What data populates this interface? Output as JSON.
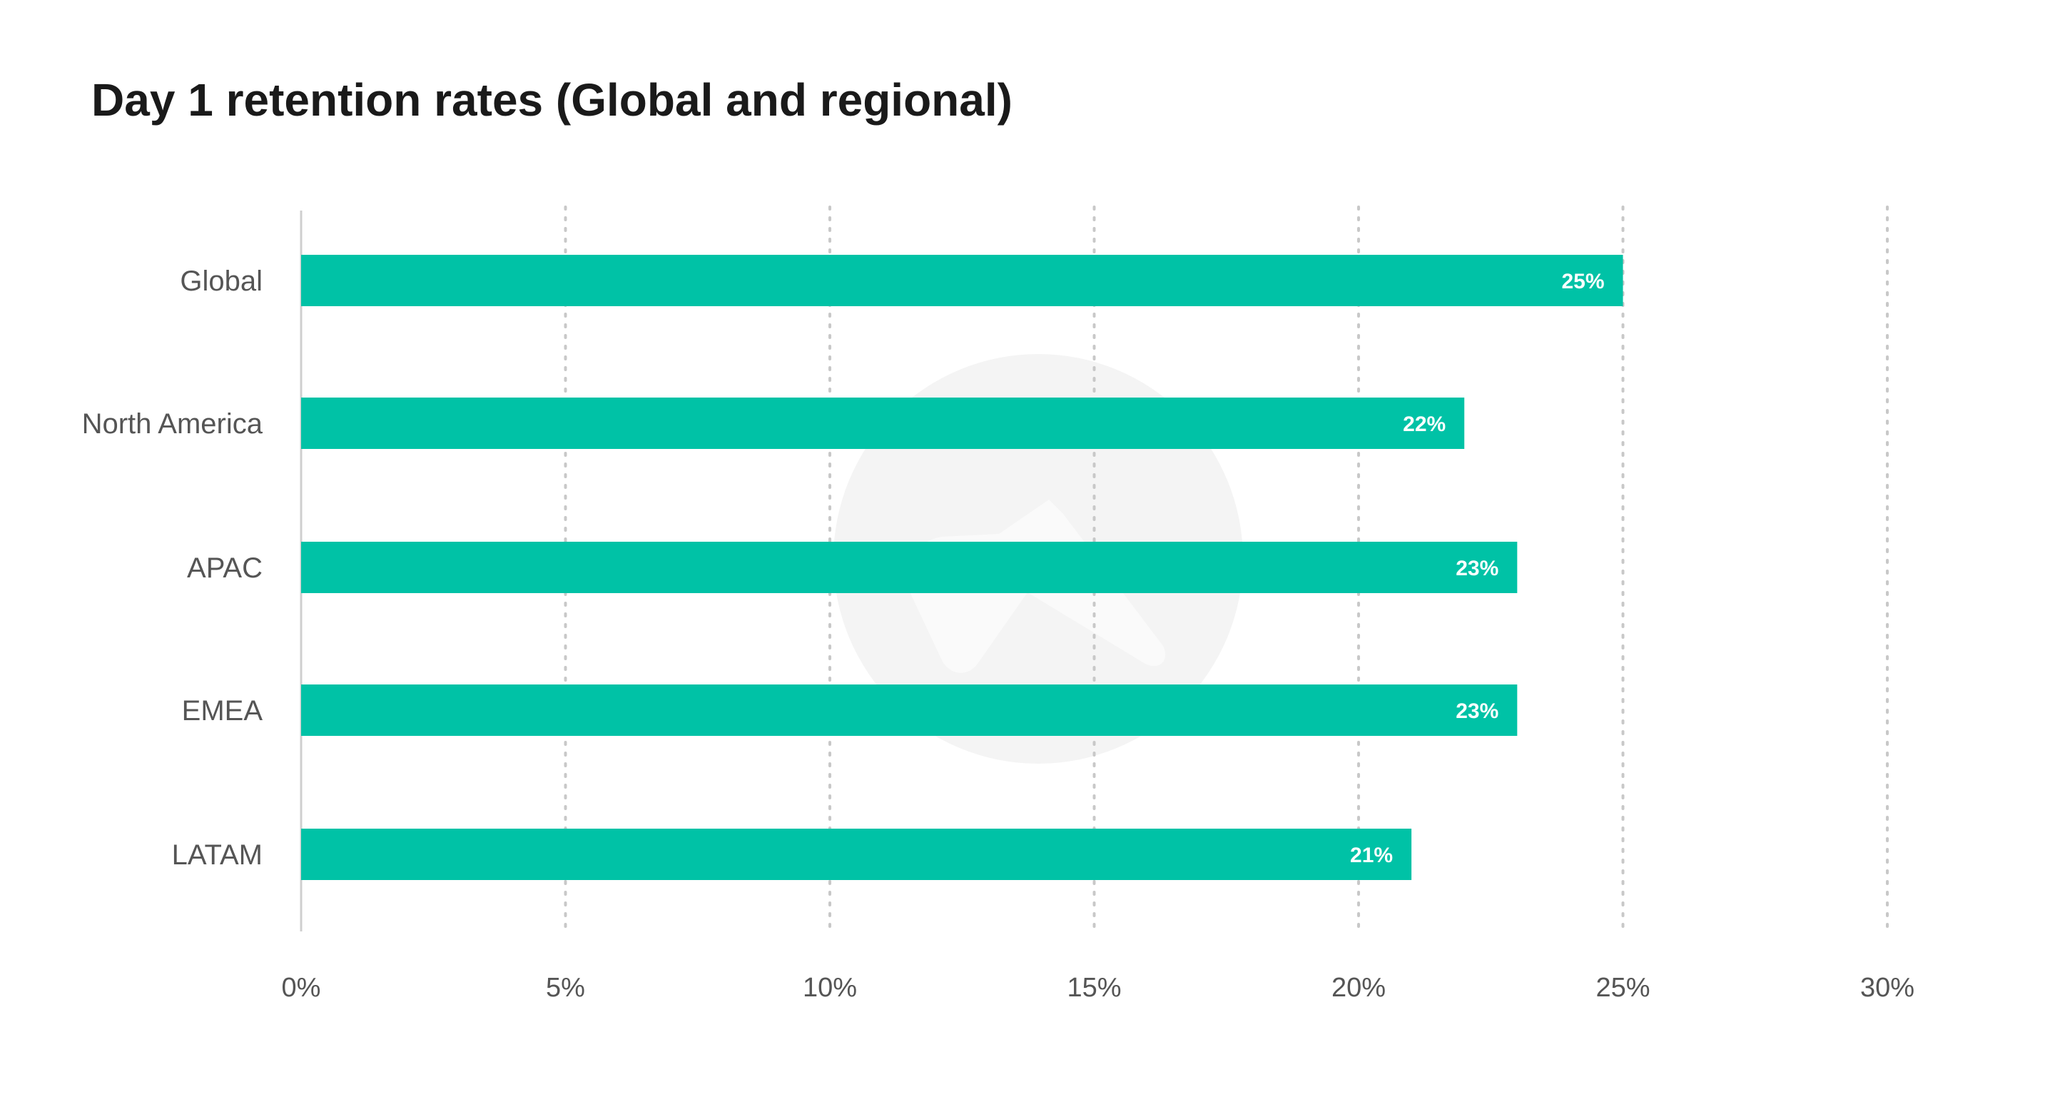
{
  "chart_data": {
    "type": "bar",
    "orientation": "horizontal",
    "title": "Day 1 retention rates (Global and regional)",
    "categories": [
      "Global",
      "North America",
      "APAC",
      "EMEA",
      "LATAM"
    ],
    "values": [
      25,
      22,
      23,
      23,
      21
    ],
    "data_labels": [
      "25%",
      "22%",
      "23%",
      "23%",
      "21%"
    ],
    "xlim": [
      0,
      30
    ],
    "x_ticks": [
      0,
      5,
      10,
      15,
      20,
      25,
      30
    ],
    "x_tick_labels": [
      "0%",
      "5%",
      "10%",
      "15%",
      "20%",
      "25%",
      "30%"
    ],
    "grid": true,
    "legend": "none"
  },
  "colors": {
    "bar": "#00c2a6",
    "watermark": "#f4f4f4"
  },
  "watermark_icon": "logo-watermark-icon"
}
